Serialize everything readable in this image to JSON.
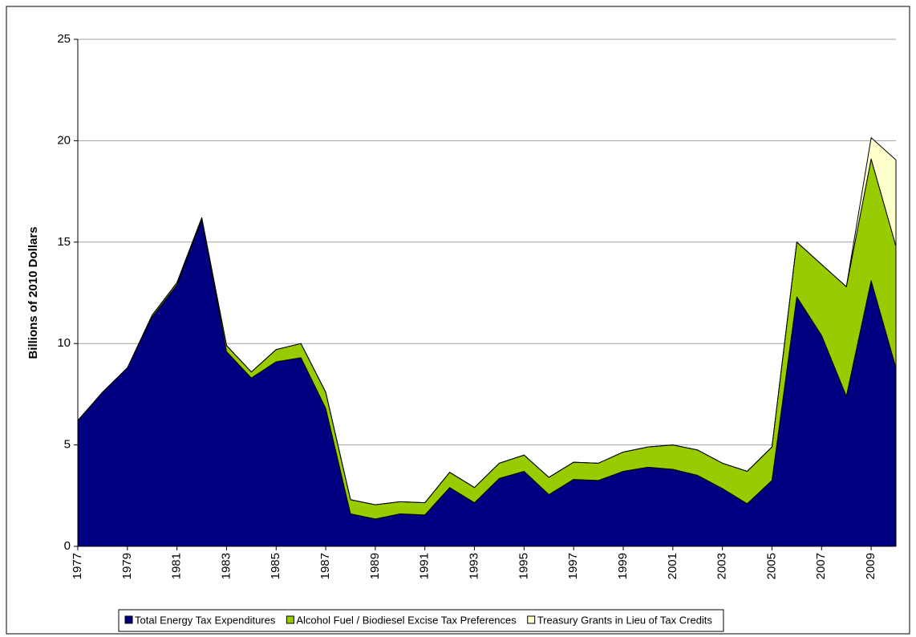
{
  "chart_data": {
    "type": "stacked-area",
    "y_label": "Billions of 2010 Dollars",
    "x": [
      1977,
      1978,
      1979,
      1980,
      1981,
      1982,
      1983,
      1984,
      1985,
      1986,
      1987,
      1988,
      1989,
      1990,
      1991,
      1992,
      1993,
      1994,
      1995,
      1996,
      1997,
      1998,
      1999,
      2000,
      2001,
      2002,
      2003,
      2004,
      2005,
      2006,
      2007,
      2008,
      2009,
      2010
    ],
    "xlim": [
      1977,
      2010
    ],
    "xticks": [
      1977,
      1979,
      1981,
      1983,
      1985,
      1987,
      1989,
      1991,
      1993,
      1995,
      1997,
      1999,
      2001,
      2003,
      2005,
      2007,
      2009
    ],
    "ylim": [
      0,
      25
    ],
    "yticks": [
      0,
      5,
      10,
      15,
      20,
      25
    ],
    "grid": true,
    "legend": "bottom",
    "series": [
      {
        "name": "Total Energy Tax Expenditures",
        "color": "#000080",
        "values": [
          6.2,
          7.6,
          8.8,
          11.3,
          12.9,
          16.1,
          9.6,
          8.3,
          9.1,
          9.3,
          6.8,
          1.6,
          1.35,
          1.6,
          1.55,
          2.9,
          2.15,
          3.35,
          3.7,
          2.55,
          3.3,
          3.25,
          3.7,
          3.9,
          3.8,
          3.5,
          2.85,
          2.1,
          3.25,
          12.3,
          10.4,
          7.4,
          13.1,
          8.8
        ]
      },
      {
        "name": "Alcohol Fuel / Biodiesel Excise Tax Preferences",
        "color": "#99cc00",
        "values": [
          0,
          0,
          0,
          0.1,
          0.1,
          0.1,
          0.3,
          0.3,
          0.6,
          0.7,
          0.8,
          0.7,
          0.7,
          0.6,
          0.6,
          0.75,
          0.75,
          0.75,
          0.8,
          0.85,
          0.85,
          0.85,
          0.95,
          1.0,
          1.2,
          1.25,
          1.25,
          1.6,
          1.65,
          2.7,
          3.5,
          5.4,
          6.0,
          6.0
        ]
      },
      {
        "name": "Treasury Grants in Lieu of Tax Credits",
        "color": "#ffffcc",
        "values": [
          0,
          0,
          0,
          0,
          0,
          0,
          0,
          0,
          0,
          0,
          0,
          0,
          0,
          0,
          0,
          0,
          0,
          0,
          0,
          0,
          0,
          0,
          0,
          0,
          0,
          0,
          0,
          0,
          0,
          0,
          0,
          0,
          1.05,
          4.25
        ]
      }
    ]
  }
}
